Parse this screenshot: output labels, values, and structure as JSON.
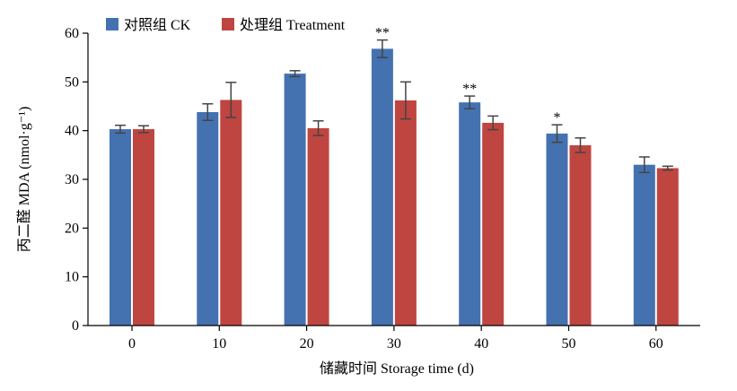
{
  "chart_data": {
    "type": "bar",
    "xlabel": "储藏时间 Storage time (d)",
    "ylabel": "丙二醛 MDA (nmol·g⁻¹)",
    "categories": [
      "0",
      "10",
      "20",
      "30",
      "40",
      "50",
      "60"
    ],
    "ylim": [
      0,
      60
    ],
    "yticks": [
      "0",
      "10",
      "20",
      "30",
      "40",
      "50",
      "60"
    ],
    "grid": false,
    "legend_position": "top-left",
    "series": [
      {
        "name": "对照组 CK",
        "color": "#4472b0",
        "values": [
          40.3,
          43.8,
          51.7,
          56.8,
          45.8,
          39.4,
          33.0
        ],
        "errors": [
          0.8,
          1.7,
          0.6,
          1.8,
          1.3,
          1.8,
          1.6
        ]
      },
      {
        "name": "处理组 Treatment",
        "color": "#bf4540",
        "values": [
          40.3,
          46.3,
          40.5,
          46.2,
          41.6,
          37.0,
          32.3
        ],
        "errors": [
          0.7,
          3.6,
          1.5,
          3.8,
          1.4,
          1.5,
          0.4
        ]
      }
    ],
    "significance": [
      "",
      "",
      "",
      "**",
      "**",
      "*",
      ""
    ]
  }
}
